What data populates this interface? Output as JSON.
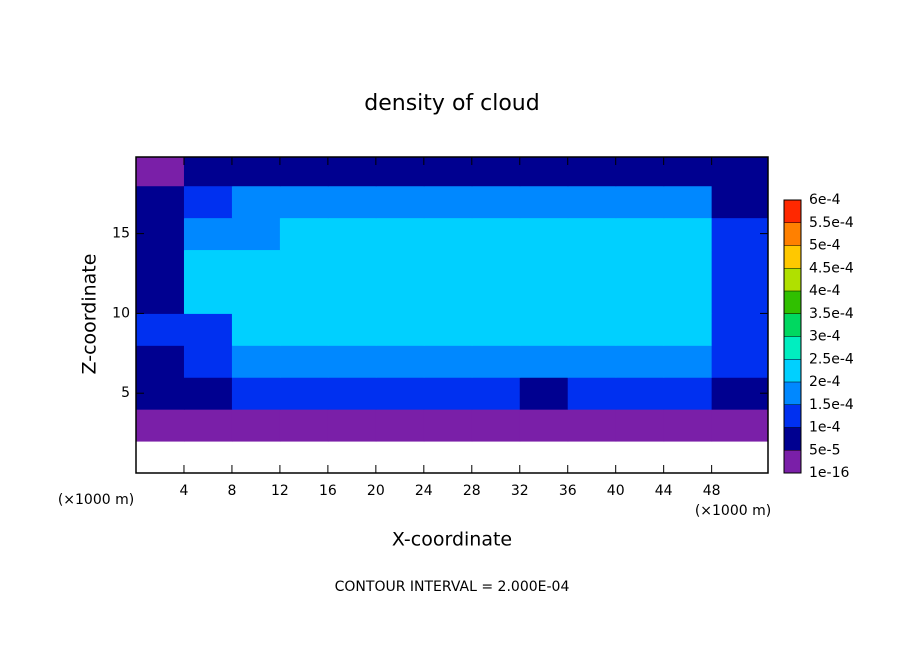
{
  "chart_data": {
    "type": "heatmap",
    "title": "density of cloud",
    "x_label": "X-coordinate",
    "y_label": "Z-coordinate",
    "x_unit": "(×1000 m)",
    "y_unit": "(×1000 m)",
    "footer": "CONTOUR INTERVAL = 2.000E-04",
    "xlim": [
      0,
      52.7
    ],
    "ylim": [
      0,
      19.8
    ],
    "xticks": [
      4,
      8,
      12,
      16,
      20,
      24,
      28,
      32,
      36,
      40,
      44,
      48
    ],
    "yticks": [
      5,
      10,
      15
    ],
    "x": [
      2,
      6,
      10,
      14,
      18,
      22,
      26,
      30,
      34,
      38,
      42,
      46,
      50
    ],
    "y": [
      1,
      3,
      5,
      7,
      9,
      11,
      13,
      15,
      17,
      19
    ],
    "z": [
      [
        null,
        null,
        null,
        null,
        null,
        null,
        null,
        null,
        null,
        null,
        null,
        null,
        null
      ],
      [
        1e-16,
        1e-16,
        1e-16,
        1e-16,
        1e-16,
        1e-16,
        1e-16,
        1e-16,
        1e-16,
        1e-16,
        1e-16,
        1e-16,
        1e-16
      ],
      [
        6e-05,
        9e-05,
        0.0001,
        0.00011,
        0.00011,
        0.00011,
        0.00011,
        0.0001,
        9e-05,
        0.00011,
        0.00011,
        0.00011,
        7e-05
      ],
      [
        9e-05,
        0.00012,
        0.00019,
        0.00019,
        0.00019,
        0.00019,
        0.00019,
        0.00019,
        0.00018,
        0.00019,
        0.00019,
        0.00019,
        0.00012
      ],
      [
        0.00012,
        0.00014,
        0.00022,
        0.00022,
        0.00022,
        0.00022,
        0.00022,
        0.00022,
        0.00022,
        0.00022,
        0.00022,
        0.00021,
        0.00014
      ],
      [
        9e-05,
        0.00021,
        0.00023,
        0.00023,
        0.00023,
        0.00023,
        0.00023,
        0.00023,
        0.00023,
        0.00023,
        0.00023,
        0.00022,
        0.00013
      ],
      [
        8e-05,
        0.00021,
        0.00022,
        0.00022,
        0.00022,
        0.00022,
        0.00022,
        0.00022,
        0.00022,
        0.00022,
        0.00022,
        0.00022,
        0.00013
      ],
      [
        7e-05,
        0.00018,
        0.00019,
        0.00021,
        0.00021,
        0.00021,
        0.00021,
        0.00021,
        0.00021,
        0.00021,
        0.00021,
        0.0002,
        0.00011
      ],
      [
        5e-05,
        0.00011,
        0.00015,
        0.00016,
        0.00016,
        0.00016,
        0.00016,
        0.00016,
        0.00016,
        0.00016,
        0.00016,
        0.00015,
        9e-05
      ],
      [
        3e-05,
        6e-05,
        8e-05,
        9e-05,
        9e-05,
        9e-05,
        9e-05,
        9e-05,
        9e-05,
        9e-05,
        9e-05,
        8e-05,
        5e-05
      ]
    ],
    "colorbar": {
      "levels": [
        {
          "value": 1e-16,
          "label": "1e-16"
        },
        {
          "value": 5e-05,
          "label": "5e-5"
        },
        {
          "value": 0.0001,
          "label": "1e-4"
        },
        {
          "value": 0.00015,
          "label": "1.5e-4"
        },
        {
          "value": 0.0002,
          "label": "2e-4"
        },
        {
          "value": 0.00025,
          "label": "2.5e-4"
        },
        {
          "value": 0.0003,
          "label": "3e-4"
        },
        {
          "value": 0.00035,
          "label": "3.5e-4"
        },
        {
          "value": 0.0004,
          "label": "4e-4"
        },
        {
          "value": 0.00045,
          "label": "4.5e-4"
        },
        {
          "value": 0.0005,
          "label": "5e-4"
        },
        {
          "value": 0.00055,
          "label": "5.5e-4"
        },
        {
          "value": 0.0006,
          "label": "6e-4"
        }
      ],
      "colors": [
        "#7a1fa8",
        "#000090",
        "#0030f0",
        "#0088ff",
        "#00d0ff",
        "#00eec0",
        "#00d860",
        "#30c000",
        "#b0e000",
        "#ffc800",
        "#ff8000",
        "#ff2800"
      ]
    }
  }
}
